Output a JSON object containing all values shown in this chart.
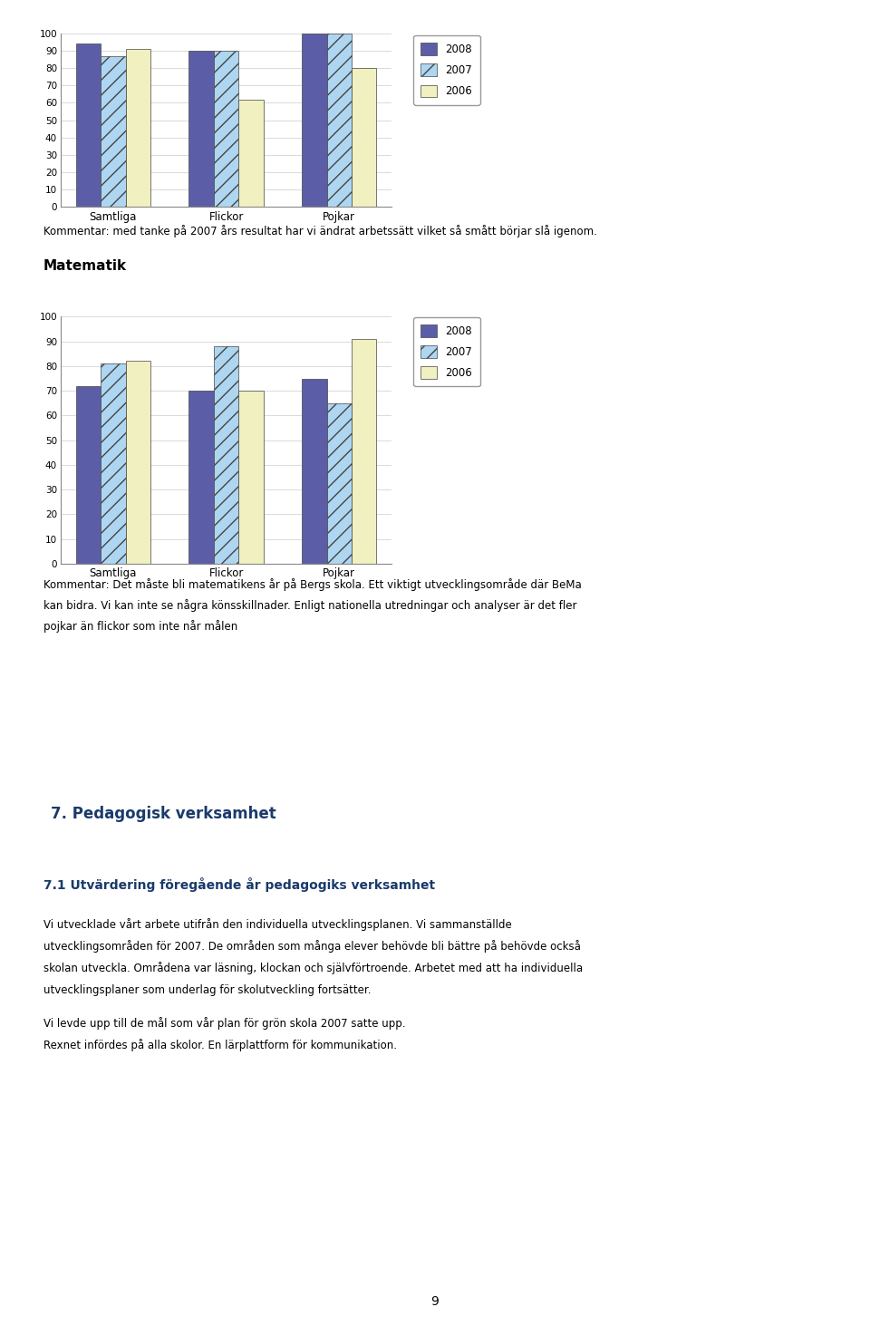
{
  "chart1": {
    "categories": [
      "Samtliga",
      "Flickor",
      "Pojkar"
    ],
    "series_2008": [
      94,
      90,
      100
    ],
    "series_2007": [
      87,
      90,
      100
    ],
    "series_2006": [
      91,
      62,
      80
    ],
    "ylim": [
      0,
      100
    ],
    "yticks": [
      0,
      10,
      20,
      30,
      40,
      50,
      60,
      70,
      80,
      90,
      100
    ]
  },
  "chart2": {
    "title": "Matematik",
    "categories": [
      "Samtliga",
      "Flickor",
      "Pojkar"
    ],
    "series_2008": [
      72,
      70,
      75
    ],
    "series_2007": [
      81,
      88,
      65
    ],
    "series_2006": [
      82,
      70,
      91
    ],
    "ylim": [
      0,
      100
    ],
    "yticks": [
      0,
      10,
      20,
      30,
      40,
      50,
      60,
      70,
      80,
      90,
      100
    ]
  },
  "color_2008": "#5b5ea6",
  "color_2007": "#aed6f1",
  "color_2006": "#f0f0c0",
  "comment1": "Kommentar: med tanke på 2007 års resultat har vi ändrat arbetssätt vilket så smått börjar slå igenom.",
  "comment2_line1": "Kommentar: Det måste bli matematikens år på Bergs skola. Ett viktigt utvecklingsområde där BeMa",
  "comment2_line2": "kan bidra. Vi kan inte se några könsskillnader. Enligt nationella utredningar och analyser är det fler",
  "comment2_line3": "pojkar än flickor som inte når målen",
  "section_header": "7. Pedagogisk verksamhet",
  "subsection_header": "7.1 Utvärdering föregående år pedagogiks verksamhet",
  "body_text_lines": [
    "Vi utvecklade vårt arbete utifrån den individuella utvecklingsplanen. Vi sammanställde",
    "utvecklingsområden för 2007. De områden som många elever behövde bli bättre på behövde också",
    "skolan utveckla. Områdena var läsning, klockan och självförtroende. Arbetet med att ha individuella",
    "utvecklingsplaner som underlag för skolutveckling fortsätter.",
    "Vi levde upp till de mål som vår plan för grön skola 2007 satte upp.",
    "Rexnet infördes på alla skolor. En lärplattform för kommunikation."
  ],
  "page_number": "9",
  "background_color": "#ffffff"
}
